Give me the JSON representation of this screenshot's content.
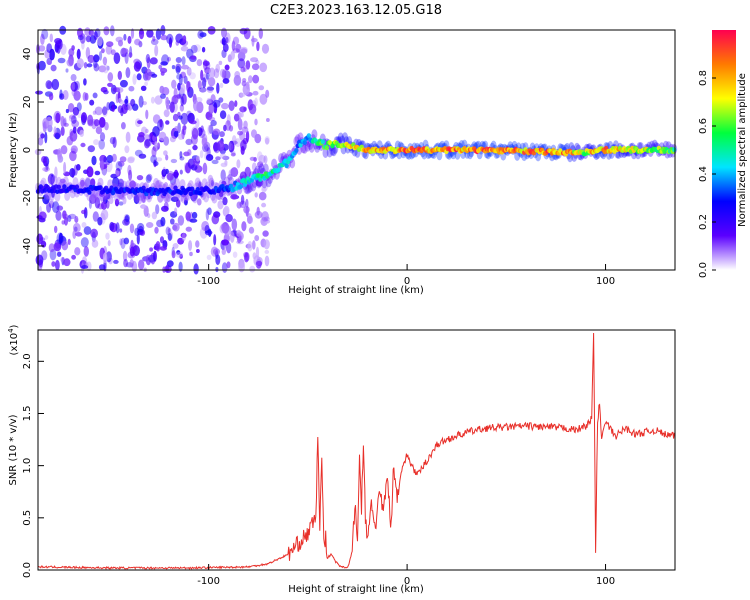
{
  "title": "C2E3.2023.163.12.05.G18",
  "colors": {
    "line": "#e8302a",
    "frame": "#000000"
  },
  "chart_data": [
    {
      "type": "heatmap",
      "xlabel": "Height of straight line (km)",
      "ylabel": "Frequency (Hz)",
      "xlim": [
        -186,
        135
      ],
      "ylim": [
        -50,
        50
      ],
      "xticks": [
        -100,
        0,
        100
      ],
      "yticks": [
        -40,
        -20,
        0,
        20,
        40
      ],
      "colorbar": {
        "label": "Normalized spectral amplitude",
        "range": [
          0,
          1
        ],
        "ticks": [
          "0.0",
          "0.2",
          "0.4",
          "0.6",
          "0.8"
        ],
        "colormap": [
          "#ffffff",
          "#5a00ff",
          "#0000ff",
          "#00e5ff",
          "#00ff3c",
          "#ffff00",
          "#ff7a00",
          "#ff0050"
        ]
      },
      "ridge": {
        "x": [
          -186,
          -150,
          -120,
          -100,
          -90,
          -80,
          -70,
          -60,
          -55,
          -50,
          -45,
          -40,
          -30,
          -20,
          0,
          40,
          80,
          90,
          95,
          100,
          135
        ],
        "y": [
          -16,
          -17,
          -17,
          -17,
          -16,
          -13,
          -10,
          -5,
          2,
          5,
          3,
          2,
          2,
          0,
          0,
          0,
          -1,
          -1,
          0,
          0,
          0
        ],
        "amplitude": [
          0.25,
          0.3,
          0.3,
          0.28,
          0.35,
          0.5,
          0.55,
          0.45,
          0.4,
          0.45,
          0.55,
          0.65,
          0.8,
          0.85,
          0.9,
          0.9,
          0.88,
          0.7,
          0.85,
          0.88,
          0.6
        ]
      }
    },
    {
      "type": "line",
      "xlabel": "Height of straight line (km)",
      "ylabel": "SNR (10 * v/v)",
      "yscale_label": "(x10",
      "yscale_exponent": "4",
      "yscale_close": ")",
      "xlim": [
        -186,
        135
      ],
      "ylim": [
        0,
        23000
      ],
      "xticks": [
        -100,
        0,
        100
      ],
      "yticks": [
        0,
        5000,
        10000,
        15000,
        20000
      ],
      "ytick_labels": [
        "0.0",
        "0.5",
        "1.0",
        "1.5",
        "2.0"
      ],
      "series": [
        {
          "x": [
            -186,
            -150,
            -110,
            -80,
            -70,
            -60,
            -55,
            -50,
            -46,
            -45,
            -44,
            -43,
            -42,
            -41,
            -40,
            -38,
            -36,
            -34,
            -32,
            -30,
            -28,
            -26,
            -25,
            -24,
            -23,
            -22,
            -21,
            -20,
            -18,
            -16,
            -14,
            -12,
            -10,
            -8,
            -7,
            -5,
            -3,
            0,
            5,
            10,
            15,
            20,
            30,
            40,
            50,
            60,
            70,
            80,
            85,
            90,
            93,
            94,
            95,
            96,
            97,
            98,
            100,
            105,
            110,
            115,
            120,
            125,
            130,
            135
          ],
          "y": [
            300,
            200,
            200,
            300,
            600,
            1500,
            2500,
            3500,
            5000,
            13000,
            4000,
            11000,
            2500,
            3000,
            1200,
            1500,
            800,
            400,
            300,
            200,
            1500,
            6500,
            2000,
            11000,
            6000,
            12000,
            5000,
            2500,
            6500,
            4000,
            7500,
            5500,
            9000,
            4000,
            10000,
            7000,
            9500,
            11000,
            9000,
            10500,
            12000,
            12500,
            13200,
            13600,
            13700,
            13800,
            13700,
            13600,
            13400,
            13800,
            14500,
            22800,
            2200,
            14000,
            16200,
            12500,
            14200,
            12800,
            13600,
            13000,
            13200,
            13400,
            13000,
            12800
          ]
        }
      ]
    }
  ]
}
